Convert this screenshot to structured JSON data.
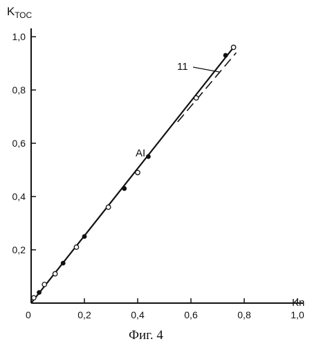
{
  "chart_data": {
    "type": "line",
    "xlabel": "Kn",
    "ylabel_main": "K",
    "ylabel_sub": "ТОС",
    "xlim": [
      0,
      1.0
    ],
    "ylim": [
      0,
      1.0
    ],
    "x_ticks": [
      {
        "v": 0,
        "label": "0"
      },
      {
        "v": 0.2,
        "label": "0,2"
      },
      {
        "v": 0.4,
        "label": "0,4"
      },
      {
        "v": 0.6,
        "label": "0,6"
      },
      {
        "v": 0.8,
        "label": "0,8"
      },
      {
        "v": 1.0,
        "label": "1,0"
      }
    ],
    "y_ticks": [
      {
        "v": 0.2,
        "label": "0,2"
      },
      {
        "v": 0.4,
        "label": "0,4"
      },
      {
        "v": 0.6,
        "label": "0,6"
      },
      {
        "v": 0.8,
        "label": "0,8"
      },
      {
        "v": 1.0,
        "label": "1,0"
      }
    ],
    "annotations": [
      {
        "text": "AI",
        "x": 0.43,
        "y": 0.55
      },
      {
        "text": "11",
        "x": 0.58,
        "y": 0.86
      }
    ],
    "caption": "Фиг. 4",
    "series": [
      {
        "style": "solid",
        "x": [
          0.0,
          0.76
        ],
        "y": [
          0.0,
          0.96
        ]
      },
      {
        "style": "dashed",
        "x": [
          0.55,
          0.77
        ],
        "y": [
          0.68,
          0.94
        ]
      },
      {
        "style": "filled-points",
        "x": [
          0.03,
          0.12,
          0.2,
          0.35,
          0.44,
          0.73
        ],
        "y": [
          0.04,
          0.15,
          0.25,
          0.43,
          0.55,
          0.93
        ]
      },
      {
        "style": "open-points",
        "x": [
          0.01,
          0.05,
          0.09,
          0.17,
          0.29,
          0.4,
          0.62,
          0.76
        ],
        "y": [
          0.02,
          0.07,
          0.11,
          0.21,
          0.36,
          0.49,
          0.77,
          0.96
        ]
      }
    ]
  }
}
